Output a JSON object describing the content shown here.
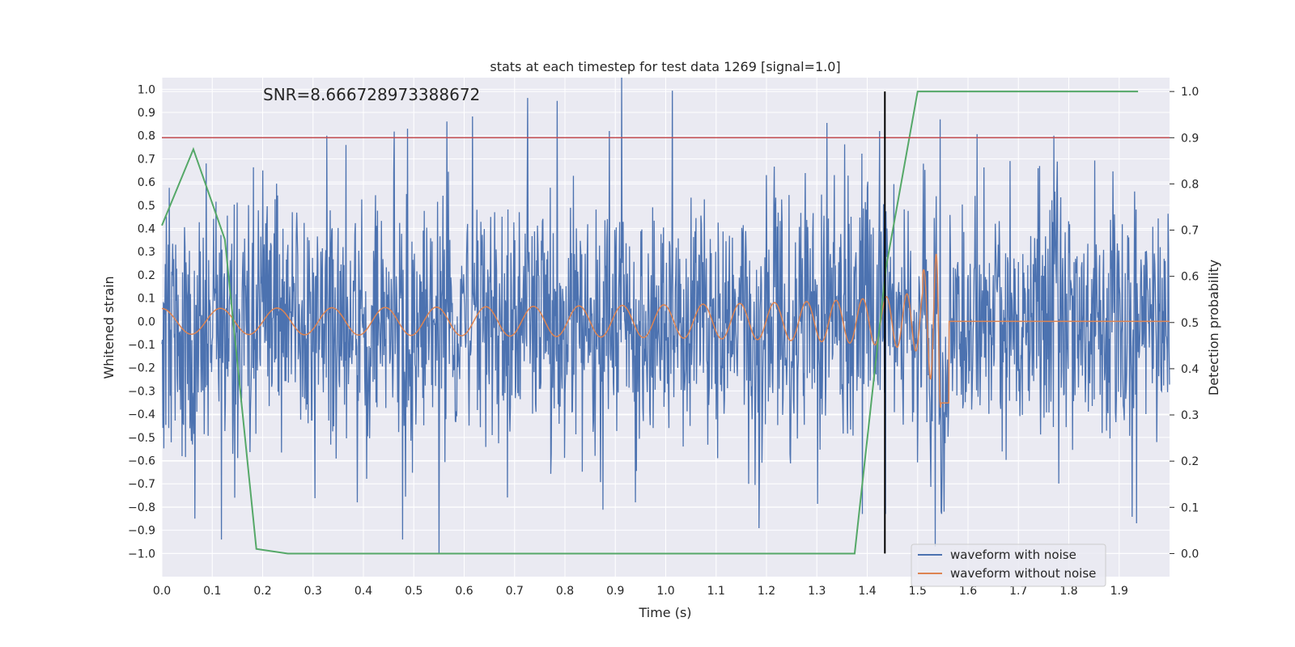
{
  "chart_data": {
    "type": "line",
    "title": "stats at each timestep for test data 1269 [signal=1.0]",
    "annotation": "SNR=8.666728973388672",
    "xlabel": "Time (s)",
    "ylabel": "Whitened strain",
    "y2label": "Detection probability",
    "xlim": [
      0.0,
      2.0
    ],
    "ylim": [
      -1.1,
      1.05
    ],
    "y2lim": [
      -0.05,
      1.03
    ],
    "x_ticks": [
      0.0,
      0.1,
      0.2,
      0.3,
      0.4,
      0.5,
      0.6,
      0.7,
      0.8,
      0.9,
      1.0,
      1.1,
      1.2,
      1.3,
      1.4,
      1.5,
      1.6,
      1.7,
      1.8,
      1.9
    ],
    "x_tick_labels": [
      "0.0",
      "0.1",
      "0.2",
      "0.3",
      "0.4",
      "0.5",
      "0.6",
      "0.7",
      "0.8",
      "0.9",
      "1.0",
      "1.1",
      "1.2",
      "1.3",
      "1.4",
      "1.5",
      "1.6",
      "1.7",
      "1.8",
      "1.9"
    ],
    "y_ticks": [
      -1.0,
      -0.9,
      -0.8,
      -0.7,
      -0.6,
      -0.5,
      -0.4,
      -0.3,
      -0.2,
      -0.1,
      0.0,
      0.1,
      0.2,
      0.3,
      0.4,
      0.5,
      0.6,
      0.7,
      0.8,
      0.9,
      1.0
    ],
    "y_tick_labels": [
      "−1.0",
      "−0.9",
      "−0.8",
      "−0.7",
      "−0.6",
      "−0.5",
      "−0.4",
      "−0.3",
      "−0.2",
      "−0.1",
      "0.0",
      "0.1",
      "0.2",
      "0.3",
      "0.4",
      "0.5",
      "0.6",
      "0.7",
      "0.8",
      "0.9",
      "1.0"
    ],
    "y2_ticks": [
      0.0,
      0.1,
      0.2,
      0.3,
      0.4,
      0.5,
      0.6,
      0.7,
      0.8,
      0.9,
      1.0
    ],
    "y2_tick_labels": [
      "0.0",
      "0.1",
      "0.2",
      "0.3",
      "0.4",
      "0.5",
      "0.6",
      "0.7",
      "0.8",
      "0.9",
      "1.0"
    ],
    "grid": true,
    "legend_position": "bottom-right",
    "legend": [
      {
        "label": "waveform with noise",
        "color": "#4c72b0"
      },
      {
        "label": "waveform without noise",
        "color": "#dd8452"
      }
    ],
    "series": [
      {
        "name": "waveform with noise",
        "color": "#4c72b0",
        "axis": "left",
        "noise_std": 0.26,
        "n_samples": 2048,
        "x_range": [
          0.0,
          2.0
        ],
        "spikes": [
          {
            "x": 0.065,
            "y": -0.85
          },
          {
            "x": 0.088,
            "y": 0.68
          },
          {
            "x": 0.118,
            "y": -0.94
          },
          {
            "x": 0.145,
            "y": -0.76
          },
          {
            "x": 0.2,
            "y": 0.65
          },
          {
            "x": 0.327,
            "y": 0.8
          },
          {
            "x": 0.365,
            "y": 0.76
          },
          {
            "x": 0.388,
            "y": -0.78
          },
          {
            "x": 0.478,
            "y": -0.94
          },
          {
            "x": 0.488,
            "y": 0.83
          },
          {
            "x": 0.55,
            "y": -1.0
          },
          {
            "x": 0.785,
            "y": 0.95
          },
          {
            "x": 0.888,
            "y": 0.82
          },
          {
            "x": 0.94,
            "y": -0.78
          },
          {
            "x": 1.165,
            "y": -0.7
          },
          {
            "x": 1.2,
            "y": 0.63
          },
          {
            "x": 1.335,
            "y": 0.63
          },
          {
            "x": 1.39,
            "y": -0.83
          },
          {
            "x": 1.425,
            "y": 0.82
          },
          {
            "x": 1.436,
            "y": -0.83
          },
          {
            "x": 1.545,
            "y": 0.87
          },
          {
            "x": 1.535,
            "y": -0.97
          },
          {
            "x": 1.77,
            "y": 0.8
          },
          {
            "x": 1.935,
            "y": -0.87
          }
        ]
      },
      {
        "name": "waveform without noise",
        "color": "#dd8452",
        "axis": "left",
        "chirp": {
          "t_merge": 1.55,
          "f0_hz": 8.5,
          "amp0": 0.055,
          "amp_peak": 0.48,
          "post_merge_level": 0.0
        }
      },
      {
        "name": "",
        "color": "#55a868",
        "axis": "right",
        "x": [
          0.0,
          0.0625,
          0.125,
          0.1875,
          0.25,
          0.3125,
          0.375,
          0.4375,
          0.5,
          0.5625,
          0.625,
          0.6875,
          0.75,
          0.8125,
          0.875,
          0.9375,
          1.0,
          1.0625,
          1.125,
          1.1875,
          1.25,
          1.3125,
          1.375,
          1.4375,
          1.5,
          1.5625,
          1.625,
          1.6875,
          1.75,
          1.8125,
          1.875,
          1.9375
        ],
        "y": [
          0.71,
          0.875,
          0.68,
          0.01,
          0.0,
          0.0,
          0.0,
          0.0,
          0.0,
          0.0,
          0.0,
          0.0,
          0.0,
          0.0,
          0.0,
          0.0,
          0.0,
          0.0,
          0.0,
          0.0,
          0.0,
          0.0,
          0.0,
          0.62,
          1.0,
          1.0,
          1.0,
          1.0,
          1.0,
          1.0,
          1.0,
          1.0
        ]
      }
    ],
    "threshold_line": {
      "value": 0.9,
      "axis": "right",
      "color": "#c44e52"
    },
    "vertical_line": {
      "x": 1.435,
      "y2_range": [
        0.0,
        1.0
      ],
      "color": "#000000"
    }
  }
}
